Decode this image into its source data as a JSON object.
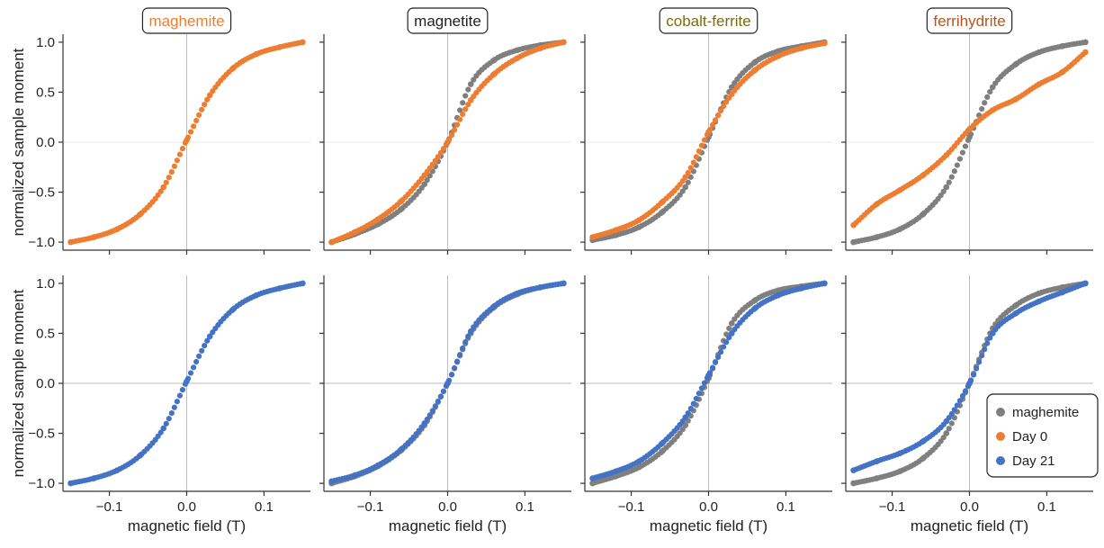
{
  "figure": {
    "xlabel": "magnetic field (T)",
    "ylabel": "normalized sample moment"
  },
  "colors": {
    "reference": "#7f7f7f",
    "day0": "#ed7d31",
    "day21": "#4472c4"
  },
  "legend": {
    "placement": "bottom-right of last panel",
    "items": [
      {
        "label": "maghemite",
        "color": "#7f7f7f"
      },
      {
        "label": "Day 0",
        "color": "#ed7d31"
      },
      {
        "label": "Day 21",
        "color": "#4472c4"
      }
    ]
  },
  "chart_data": {
    "type": "scatter",
    "layout": "2 rows x 4 columns, shared axes",
    "x_axis": {
      "label": "magnetic field (T)",
      "range": [
        -0.16,
        0.16
      ],
      "ticks": [
        -0.1,
        0.0,
        0.1
      ],
      "tick_labels": [
        "−0.1",
        "0.0",
        "0.1"
      ]
    },
    "y_axis": {
      "label": "normalized sample moment",
      "range": [
        -1.08,
        1.08
      ],
      "ticks": [
        -1.0,
        -0.5,
        0.0,
        0.5,
        1.0
      ],
      "tick_labels": [
        "−1.0",
        "−0.5",
        "0.0",
        "0.5",
        "1.0"
      ]
    },
    "grid": "zero lines only",
    "columns": [
      {
        "title": "maghemite",
        "title_color": "#ed7d31"
      },
      {
        "title": "magnetite",
        "title_color": "#222222"
      },
      {
        "title": "cobalt-ferrite",
        "title_color": "#7a6b10"
      },
      {
        "title": "ferrihydrite",
        "title_color": "#b5541f"
      }
    ],
    "panels": [
      {
        "row": 0,
        "col": 0,
        "series": [
          {
            "key": "day0",
            "x": [
              -0.15,
              -0.12,
              -0.09,
              -0.06,
              -0.03,
              0.0,
              0.03,
              0.06,
              0.09,
              0.12,
              0.15
            ],
            "y": [
              -1.0,
              -0.95,
              -0.87,
              -0.72,
              -0.45,
              0.02,
              0.47,
              0.74,
              0.88,
              0.95,
              1.0
            ]
          }
        ]
      },
      {
        "row": 0,
        "col": 1,
        "series": [
          {
            "key": "reference",
            "x": [
              -0.15,
              -0.12,
              -0.09,
              -0.06,
              -0.03,
              0.0,
              0.03,
              0.06,
              0.09,
              0.12,
              0.15
            ],
            "y": [
              -1.0,
              -0.92,
              -0.82,
              -0.67,
              -0.42,
              0.0,
              0.58,
              0.82,
              0.92,
              0.97,
              1.0
            ]
          },
          {
            "key": "day0",
            "x": [
              -0.15,
              -0.12,
              -0.09,
              -0.06,
              -0.03,
              0.0,
              0.03,
              0.06,
              0.09,
              0.12,
              0.15
            ],
            "y": [
              -1.0,
              -0.9,
              -0.77,
              -0.59,
              -0.33,
              0.0,
              0.42,
              0.68,
              0.84,
              0.94,
              1.0
            ]
          }
        ]
      },
      {
        "row": 0,
        "col": 2,
        "series": [
          {
            "key": "reference",
            "x": [
              -0.15,
              -0.12,
              -0.09,
              -0.06,
              -0.03,
              0.0,
              0.03,
              0.06,
              0.09,
              0.12,
              0.15
            ],
            "y": [
              -0.98,
              -0.93,
              -0.85,
              -0.7,
              -0.45,
              0.05,
              0.55,
              0.8,
              0.91,
              0.96,
              1.0
            ]
          },
          {
            "key": "day0",
            "x": [
              -0.15,
              -0.12,
              -0.09,
              -0.06,
              -0.03,
              0.0,
              0.03,
              0.06,
              0.09,
              0.12,
              0.15
            ],
            "y": [
              -0.95,
              -0.88,
              -0.78,
              -0.6,
              -0.35,
              0.1,
              0.48,
              0.72,
              0.86,
              0.94,
              0.99
            ]
          }
        ]
      },
      {
        "row": 0,
        "col": 3,
        "series": [
          {
            "key": "reference",
            "x": [
              -0.15,
              -0.12,
              -0.09,
              -0.06,
              -0.03,
              0.0,
              0.03,
              0.06,
              0.09,
              0.12,
              0.15
            ],
            "y": [
              -1.0,
              -0.95,
              -0.87,
              -0.72,
              -0.45,
              0.05,
              0.55,
              0.78,
              0.9,
              0.96,
              1.0
            ]
          },
          {
            "key": "day0",
            "x": [
              -0.15,
              -0.12,
              -0.09,
              -0.06,
              -0.03,
              0.0,
              0.03,
              0.06,
              0.09,
              0.12,
              0.15
            ],
            "y": [
              -0.83,
              -0.62,
              -0.48,
              -0.33,
              -0.13,
              0.13,
              0.32,
              0.43,
              0.58,
              0.7,
              0.9
            ]
          }
        ]
      },
      {
        "row": 1,
        "col": 0,
        "series": [
          {
            "key": "day21",
            "x": [
              -0.15,
              -0.12,
              -0.09,
              -0.06,
              -0.03,
              0.0,
              0.03,
              0.06,
              0.09,
              0.12,
              0.15
            ],
            "y": [
              -1.0,
              -0.95,
              -0.87,
              -0.72,
              -0.45,
              0.02,
              0.47,
              0.74,
              0.88,
              0.95,
              1.0
            ]
          }
        ]
      },
      {
        "row": 1,
        "col": 1,
        "series": [
          {
            "key": "reference",
            "x": [
              -0.15,
              -0.12,
              -0.09,
              -0.06,
              -0.03,
              0.0,
              0.03,
              0.06,
              0.09,
              0.12,
              0.15
            ],
            "y": [
              -1.0,
              -0.93,
              -0.83,
              -0.67,
              -0.42,
              0.0,
              0.5,
              0.76,
              0.89,
              0.96,
              1.0
            ]
          },
          {
            "key": "day21",
            "x": [
              -0.15,
              -0.12,
              -0.09,
              -0.06,
              -0.03,
              0.0,
              0.03,
              0.06,
              0.09,
              0.12,
              0.15
            ],
            "y": [
              -0.98,
              -0.92,
              -0.82,
              -0.66,
              -0.4,
              0.0,
              0.52,
              0.77,
              0.9,
              0.96,
              1.0
            ]
          }
        ]
      },
      {
        "row": 1,
        "col": 2,
        "series": [
          {
            "key": "reference",
            "x": [
              -0.15,
              -0.12,
              -0.09,
              -0.06,
              -0.03,
              0.0,
              0.03,
              0.06,
              0.09,
              0.12,
              0.15
            ],
            "y": [
              -1.0,
              -0.93,
              -0.84,
              -0.68,
              -0.42,
              0.05,
              0.6,
              0.83,
              0.93,
              0.97,
              1.0
            ]
          },
          {
            "key": "day21",
            "x": [
              -0.15,
              -0.12,
              -0.09,
              -0.06,
              -0.03,
              0.0,
              0.03,
              0.06,
              0.09,
              0.12,
              0.15
            ],
            "y": [
              -0.95,
              -0.88,
              -0.78,
              -0.6,
              -0.34,
              0.08,
              0.5,
              0.75,
              0.88,
              0.95,
              1.0
            ]
          }
        ]
      },
      {
        "row": 1,
        "col": 3,
        "series": [
          {
            "key": "reference",
            "x": [
              -0.15,
              -0.12,
              -0.09,
              -0.06,
              -0.03,
              0.0,
              0.03,
              0.06,
              0.09,
              0.12,
              0.15
            ],
            "y": [
              -1.0,
              -0.95,
              -0.88,
              -0.75,
              -0.5,
              0.0,
              0.55,
              0.78,
              0.9,
              0.96,
              1.0
            ]
          },
          {
            "key": "day21",
            "x": [
              -0.15,
              -0.12,
              -0.09,
              -0.06,
              -0.03,
              0.0,
              0.03,
              0.06,
              0.09,
              0.12,
              0.15
            ],
            "y": [
              -0.87,
              -0.78,
              -0.7,
              -0.58,
              -0.38,
              0.0,
              0.5,
              0.7,
              0.82,
              0.91,
              1.0
            ]
          }
        ]
      }
    ]
  }
}
